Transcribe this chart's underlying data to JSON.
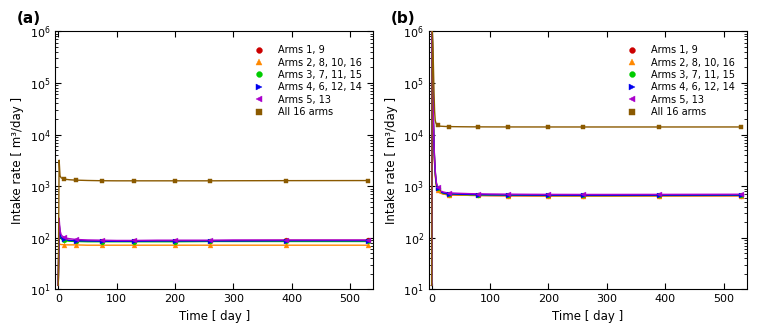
{
  "panel_a_label": "(a)",
  "panel_b_label": "(b)",
  "xlabel": "Time [ day ]",
  "ylabel": "Intake rate [ m³/day ]",
  "xlim": [
    -5,
    540
  ],
  "ylim_log": [
    10,
    1000000
  ],
  "xticks": [
    0,
    100,
    200,
    300,
    400,
    500
  ],
  "legend_labels": [
    "Arms 1, 9",
    "Arms 2, 8, 10, 16",
    "Arms 3, 7, 11, 15",
    "Arms 4, 6, 12, 14",
    "Arms 5, 13",
    "All 16 arms"
  ],
  "colors": [
    "#cc0000",
    "#ff8800",
    "#00cc00",
    "#0000ee",
    "#aa00cc",
    "#8B5A00"
  ],
  "markers": [
    "o",
    "^",
    "o",
    ">",
    "<",
    "s"
  ],
  "panel_a": {
    "time_data": [
      -0.5,
      0.01,
      1.5,
      3,
      5,
      7,
      10,
      15,
      20,
      30,
      50,
      75,
      100,
      130,
      170,
      200,
      260,
      300,
      390,
      530
    ],
    "series": {
      "arms19": [
        12,
        12,
        200,
        115,
        100,
        96,
        93,
        90,
        89,
        88,
        87,
        86,
        86,
        87,
        87,
        87,
        88,
        88,
        89,
        89
      ],
      "arms2810": [
        12,
        12,
        78,
        75,
        74,
        74,
        73,
        73,
        73,
        73,
        72,
        72,
        72,
        72,
        72,
        72,
        72,
        72,
        72,
        72
      ],
      "arms3711": [
        12,
        12,
        180,
        110,
        96,
        92,
        89,
        87,
        86,
        85,
        84,
        84,
        84,
        84,
        84,
        84,
        85,
        85,
        85,
        85
      ],
      "arms4612": [
        12,
        12,
        195,
        120,
        100,
        96,
        93,
        90,
        89,
        88,
        87,
        86,
        86,
        86,
        87,
        87,
        87,
        87,
        88,
        88
      ],
      "arms513": [
        12,
        12,
        240,
        140,
        115,
        108,
        103,
        98,
        96,
        93,
        91,
        90,
        89,
        89,
        90,
        90,
        90,
        91,
        91,
        91
      ],
      "all16": [
        12,
        12,
        3200,
        1600,
        1450,
        1420,
        1390,
        1350,
        1330,
        1310,
        1290,
        1275,
        1270,
        1270,
        1270,
        1270,
        1270,
        1275,
        1280,
        1285
      ]
    },
    "marker_times": [
      10,
      30,
      75,
      130,
      200,
      260,
      390,
      530
    ]
  },
  "panel_b": {
    "time_data": [
      -0.5,
      0.01,
      1.0,
      2,
      3,
      4,
      5,
      6,
      7,
      8,
      10,
      12,
      15,
      20,
      25,
      30,
      40,
      50,
      65,
      80,
      100,
      130,
      170,
      200,
      260,
      300,
      390,
      530
    ],
    "series": {
      "arms19": [
        12,
        12,
        950000,
        60000,
        15000,
        5500,
        2800,
        1800,
        1300,
        1050,
        870,
        790,
        740,
        710,
        690,
        685,
        678,
        672,
        665,
        662,
        658,
        655,
        652,
        651,
        650,
        650,
        652,
        655
      ],
      "arms2810": [
        12,
        12,
        850000,
        52000,
        13000,
        5000,
        2600,
        1700,
        1230,
        1000,
        850,
        775,
        730,
        705,
        688,
        682,
        675,
        670,
        664,
        661,
        657,
        654,
        651,
        650,
        649,
        648,
        650,
        652
      ],
      "arms3711": [
        12,
        12,
        980000,
        65000,
        16000,
        5800,
        2950,
        1900,
        1360,
        1100,
        910,
        820,
        765,
        730,
        710,
        704,
        696,
        690,
        682,
        678,
        673,
        669,
        665,
        663,
        661,
        661,
        663,
        666
      ],
      "arms4612": [
        12,
        12,
        1000000,
        68000,
        17000,
        6200,
        3100,
        1980,
        1410,
        1130,
        930,
        838,
        778,
        742,
        721,
        714,
        706,
        699,
        691,
        687,
        681,
        677,
        673,
        671,
        669,
        669,
        671,
        674
      ],
      "arms513": [
        12,
        12,
        1050000,
        72000,
        18000,
        6600,
        3300,
        2100,
        1490,
        1190,
        975,
        875,
        812,
        773,
        750,
        742,
        733,
        726,
        717,
        712,
        706,
        701,
        696,
        694,
        692,
        692,
        694,
        698
      ],
      "all16": [
        12,
        12,
        1050000,
        600000,
        200000,
        65000,
        28000,
        19000,
        17000,
        16000,
        15200,
        14800,
        14500,
        14400,
        14300,
        14250,
        14200,
        14150,
        14100,
        14080,
        14050,
        14030,
        14020,
        14015,
        14010,
        14010,
        14010,
        14020
      ]
    },
    "marker_times": [
      10,
      30,
      75,
      130,
      200,
      260,
      390,
      530
    ]
  }
}
